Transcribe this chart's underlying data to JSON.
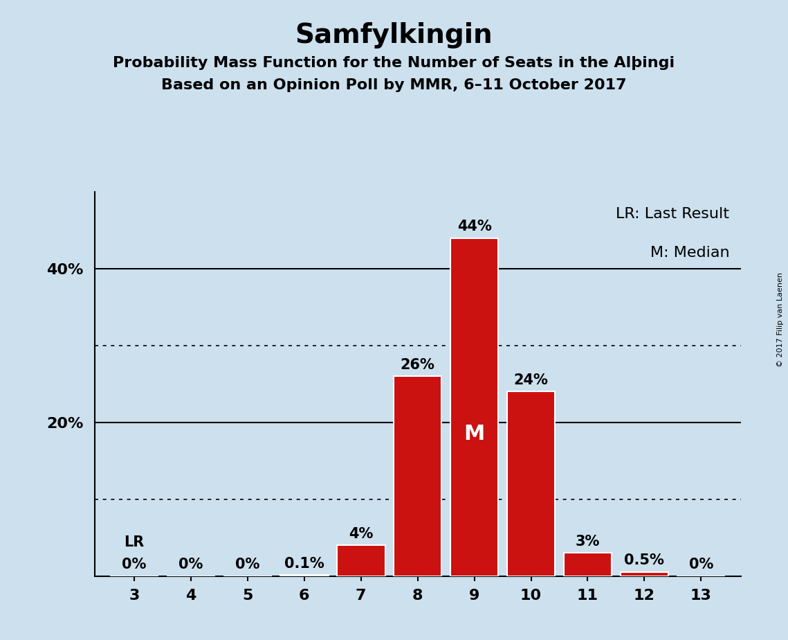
{
  "title": "Samfylkingin",
  "subtitle1": "Probability Mass Function for the Number of Seats in the Alþingi",
  "subtitle2": "Based on an Opinion Poll by MMR, 6–11 October 2017",
  "copyright": "© 2017 Filip van Laenen",
  "seats": [
    3,
    4,
    5,
    6,
    7,
    8,
    9,
    10,
    11,
    12,
    13
  ],
  "probabilities": [
    0.0,
    0.0,
    0.0,
    0.1,
    4.0,
    26.0,
    44.0,
    24.0,
    3.0,
    0.5,
    0.0
  ],
  "labels": [
    "0%",
    "0%",
    "0%",
    "0.1%",
    "4%",
    "26%",
    "44%",
    "24%",
    "3%",
    "0.5%",
    "0%"
  ],
  "bar_color": "#cc1111",
  "background_color": "#cce0ee",
  "median_seat": 9,
  "last_result_seat": 3,
  "legend_lr": "LR: Last Result",
  "legend_m": "M: Median",
  "ytick_labels": [
    "20%",
    "40%"
  ],
  "ytick_values": [
    20,
    40
  ],
  "ylim": [
    0,
    50
  ],
  "solid_yticks": [
    20,
    40
  ],
  "dotted_yticks": [
    10,
    30
  ],
  "title_fontsize": 28,
  "subtitle_fontsize": 16,
  "label_fontsize": 15,
  "tick_fontsize": 16,
  "legend_fontsize": 16
}
